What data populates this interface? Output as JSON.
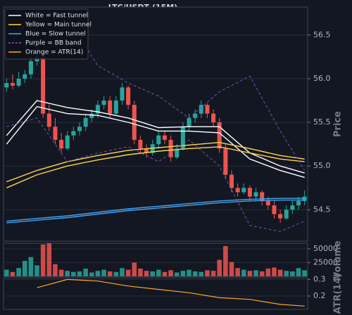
{
  "chart_data": [
    {
      "type": "candlestick",
      "title": "LTC/USDT (15M)",
      "ylabel": "Price",
      "ylim": [
        54.14,
        56.82
      ],
      "yticks": [
        54.5,
        {
          "value": 55.0,
          "label": "55.0"
        },
        55.5,
        {
          "value": 56.0,
          "label": "56.0"
        },
        56.5
      ],
      "grid": true,
      "legend": "upper left",
      "up_color": "#26a69a",
      "down_color": "#ef5350",
      "open": [
        55.9,
        55.95,
        55.92,
        56.0,
        56.05,
        56.2,
        56.25,
        55.6,
        55.45,
        55.3,
        55.2,
        55.35,
        55.4,
        55.45,
        55.55,
        55.6,
        55.7,
        55.75,
        55.6,
        55.75,
        55.9,
        55.7,
        55.3,
        55.2,
        55.15,
        55.25,
        55.35,
        55.3,
        55.1,
        55.2,
        55.45,
        55.55,
        55.6,
        55.7,
        55.6,
        55.5,
        55.2,
        54.9,
        54.75,
        54.7,
        54.75,
        54.65,
        54.7,
        54.6,
        54.55,
        54.45,
        54.4,
        54.5,
        54.55,
        54.6
      ],
      "high": [
        56.0,
        56.05,
        56.08,
        56.1,
        56.25,
        56.35,
        56.3,
        55.7,
        55.55,
        55.38,
        55.4,
        55.45,
        55.5,
        55.6,
        55.65,
        55.75,
        55.8,
        55.8,
        55.8,
        55.95,
        55.92,
        55.75,
        55.35,
        55.25,
        55.3,
        55.4,
        55.4,
        55.35,
        55.25,
        55.5,
        55.6,
        55.65,
        55.75,
        55.72,
        55.65,
        55.55,
        55.25,
        54.95,
        54.8,
        54.8,
        54.78,
        54.75,
        54.72,
        54.65,
        54.6,
        54.5,
        54.55,
        54.6,
        54.65,
        54.72
      ],
      "low": [
        55.85,
        55.88,
        55.9,
        55.95,
        56.0,
        56.15,
        55.55,
        55.4,
        55.25,
        55.15,
        55.18,
        55.3,
        55.35,
        55.4,
        55.5,
        55.55,
        55.65,
        55.55,
        55.58,
        55.7,
        55.65,
        55.25,
        55.15,
        55.1,
        55.12,
        55.2,
        55.25,
        55.05,
        55.08,
        55.18,
        55.4,
        55.5,
        55.55,
        55.55,
        55.45,
        55.15,
        54.85,
        54.7,
        54.65,
        54.68,
        54.6,
        54.6,
        54.55,
        54.5,
        54.4,
        54.35,
        54.38,
        54.45,
        54.5,
        54.55
      ],
      "close": [
        55.95,
        55.92,
        56.0,
        56.05,
        56.2,
        56.25,
        55.6,
        55.45,
        55.3,
        55.2,
        55.35,
        55.4,
        55.45,
        55.55,
        55.6,
        55.7,
        55.75,
        55.6,
        55.75,
        55.9,
        55.7,
        55.3,
        55.2,
        55.15,
        55.25,
        55.35,
        55.3,
        55.1,
        55.2,
        55.45,
        55.55,
        55.6,
        55.7,
        55.6,
        55.5,
        55.2,
        54.9,
        54.75,
        54.7,
        54.75,
        54.65,
        54.7,
        54.6,
        54.55,
        54.45,
        54.4,
        54.5,
        54.55,
        54.6,
        54.65
      ],
      "lines_x": [
        0,
        5,
        10,
        15,
        20,
        25,
        30,
        35,
        40,
        45,
        49
      ],
      "lines": [
        {
          "name": "White = Fast tunnel",
          "color": "#ffffff",
          "style": "solid",
          "upper": [
            55.35,
            55.75,
            55.67,
            55.62,
            55.55,
            55.44,
            55.45,
            55.45,
            55.15,
            55.0,
            54.92
          ],
          "lower": [
            55.25,
            55.68,
            55.6,
            55.58,
            55.5,
            55.4,
            55.4,
            55.38,
            55.08,
            54.95,
            54.87
          ]
        },
        {
          "name": "Yellow = Main tunnel",
          "color": "#ffd54f",
          "style": "solid",
          "upper": [
            54.82,
            54.95,
            55.05,
            55.12,
            55.18,
            55.21,
            55.24,
            55.27,
            55.2,
            55.12,
            55.08
          ],
          "lower": [
            54.75,
            54.9,
            55.0,
            55.07,
            55.13,
            55.17,
            55.2,
            55.22,
            55.15,
            55.08,
            55.05
          ]
        },
        {
          "name": "Blue = Slow tunnel",
          "color": "#42a5f5",
          "style": "solid",
          "upper": [
            54.37,
            54.4,
            54.43,
            54.47,
            54.51,
            54.54,
            54.57,
            54.6,
            54.62,
            54.63,
            54.63
          ],
          "lower": [
            54.35,
            54.38,
            54.41,
            54.45,
            54.49,
            54.52,
            54.55,
            54.58,
            54.6,
            54.61,
            54.61
          ]
        },
        {
          "name": "Purple = BB band",
          "color": "#7e57c2",
          "style": "dashed",
          "upper": [
            56.35,
            56.78,
            56.7,
            56.15,
            55.95,
            55.8,
            55.55,
            55.85,
            56.03,
            55.4,
            54.95
          ],
          "lower": [
            55.45,
            55.55,
            55.05,
            55.15,
            55.22,
            55.05,
            55.3,
            55.0,
            54.32,
            54.25,
            54.37
          ]
        }
      ]
    },
    {
      "type": "bar",
      "ylabel": "Volume",
      "ylim": [
        0,
        60000
      ],
      "yticks": [
        25000,
        50000
      ],
      "values": [
        12000,
        8000,
        15000,
        28000,
        35000,
        20000,
        58000,
        60000,
        22000,
        12000,
        10000,
        8000,
        9000,
        14000,
        7000,
        10000,
        12000,
        9000,
        8000,
        15000,
        12000,
        25000,
        14000,
        10000,
        9000,
        12000,
        8000,
        11000,
        7000,
        10000,
        12000,
        9000,
        8000,
        11000,
        10000,
        30000,
        55000,
        26000,
        15000,
        12000,
        10000,
        11000,
        9000,
        14000,
        16000,
        12000,
        10000,
        9000,
        15000,
        11000
      ]
    },
    {
      "type": "line",
      "ylabel": "ATR(14)",
      "ylim": [
        0.12,
        0.31
      ],
      "yticks": [
        0.2,
        0.3
      ],
      "x": [
        0,
        5,
        10,
        15,
        20,
        25,
        30,
        35,
        40,
        45,
        49
      ],
      "series": [
        {
          "name": "Orange = ATR(14)",
          "color": "#ffa726",
          "values": [
            null,
            0.25,
            0.3,
            0.29,
            0.26,
            0.24,
            0.22,
            0.19,
            0.18,
            0.15,
            0.14
          ]
        }
      ]
    }
  ]
}
